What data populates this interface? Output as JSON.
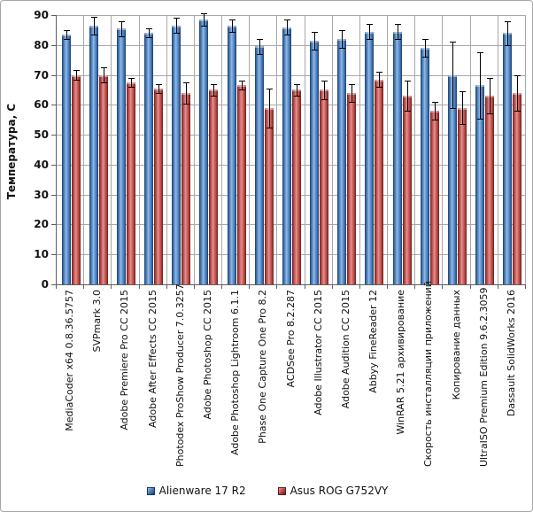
{
  "figure": {
    "background": "#ffffff",
    "border_color": "#a6a6a6",
    "gridline_color": "#a8a8a8",
    "axis_color": "#5f5f5f"
  },
  "chart_data": {
    "type": "bar",
    "title": "",
    "xlabel": "",
    "ylabel": "Температура, С",
    "ylim": [
      0,
      90
    ],
    "yticks": [
      0,
      10,
      20,
      30,
      40,
      50,
      60,
      70,
      80,
      90
    ],
    "grid": "both",
    "error_bars": true,
    "legend_position": "bottom",
    "categories": [
      "MediaCoder x64 0.8.36.5757",
      "SVPmark 3.0",
      "Adobe Premiere Pro CC 2015",
      "Adobe After Effects CC 2015",
      "Photodex ProShow Producer 7.0.3257",
      "Adobe Photoshop CC 2015",
      "Adobe Photoshop Lightroom 6.1.1",
      "Phase One Capture One Pro 8.2",
      "ACDSee Pro 8.2.287",
      "Adobe Illustrator CC 2015",
      "Adobe Audition CC 2015",
      "Abbyy FineReader 12",
      "WinRAR 5.21 архивирование",
      "Скорость инсталляции приложений",
      "Копирование данных",
      "UltraISO Premium Edition 9.6.2.3059",
      "Dassault SolidWorks 2016"
    ],
    "series": [
      {
        "name": "Alienware 17 R2",
        "color": "#4f81bd",
        "values": [
          83.5,
          86.5,
          85.5,
          84,
          86.5,
          88.5,
          86.5,
          79.5,
          86,
          81.5,
          82,
          84.5,
          84.5,
          79,
          70,
          66.5,
          84
        ],
        "errors": [
          1.5,
          3,
          2.5,
          1.5,
          2.5,
          2,
          2,
          2.5,
          2.5,
          3,
          3,
          2.5,
          2.5,
          3,
          11,
          11,
          4
        ]
      },
      {
        "name": "Asus ROG G752VY",
        "color": "#c0504d",
        "values": [
          70,
          70,
          67.5,
          65.5,
          64,
          65,
          66.5,
          59,
          65,
          65,
          64,
          68.5,
          63,
          58,
          59,
          63,
          64
        ],
        "errors": [
          1.5,
          2.5,
          1.5,
          1.5,
          3.5,
          2,
          1.5,
          6.5,
          2,
          3,
          3,
          2.5,
          5,
          3,
          5.5,
          6,
          6
        ]
      }
    ]
  }
}
